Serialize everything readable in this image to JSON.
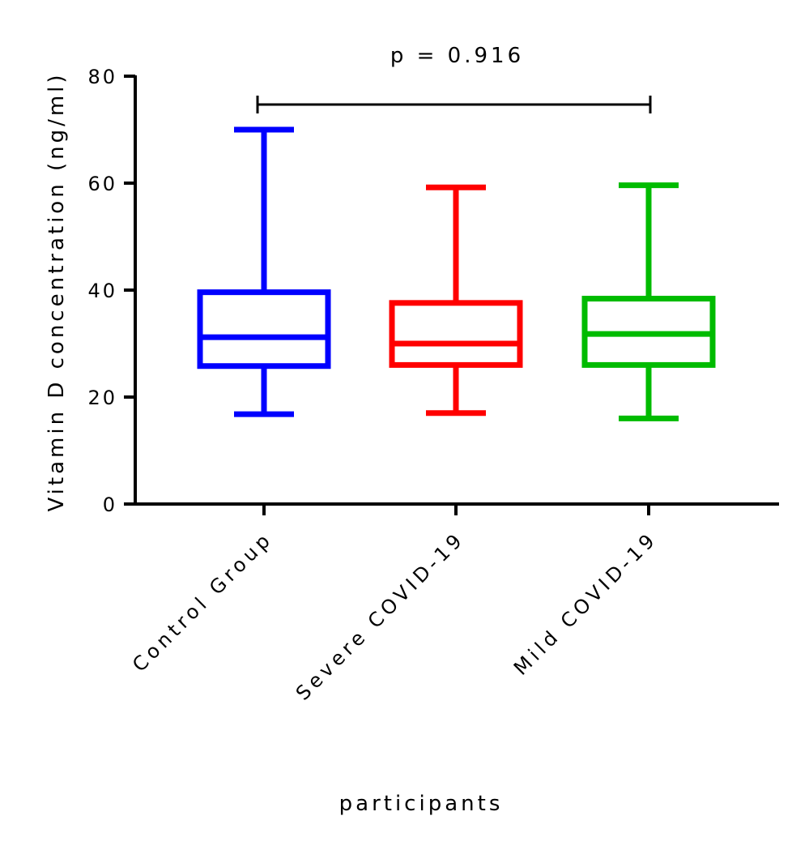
{
  "chart_data": {
    "type": "box",
    "ylabel": "Vitamin D concentration (ng/ml)",
    "xlabel": "participants",
    "ylim": [
      0,
      80
    ],
    "yticks": [
      0,
      20,
      40,
      60,
      80
    ],
    "grid": false,
    "categories": [
      "Control Group",
      "Severe COVID-19",
      "Mild COVID-19"
    ],
    "boxes": [
      {
        "category": "Control Group",
        "min": 16.8,
        "q1": 25.8,
        "median": 31.2,
        "q3": 39.6,
        "max": 70.0,
        "color": "#0000ff"
      },
      {
        "category": "Severe COVID-19",
        "min": 17.0,
        "q1": 26.0,
        "median": 30.0,
        "q3": 37.6,
        "max": 59.2,
        "color": "#ff0000"
      },
      {
        "category": "Mild COVID-19",
        "min": 16.0,
        "q1": 26.0,
        "median": 31.8,
        "q3": 38.4,
        "max": 59.6,
        "color": "#00bb00"
      }
    ],
    "annotations": [
      {
        "text": "p = 0.916",
        "from": "Control Group",
        "to": "Mild COVID-19",
        "y": 75.0
      }
    ]
  }
}
